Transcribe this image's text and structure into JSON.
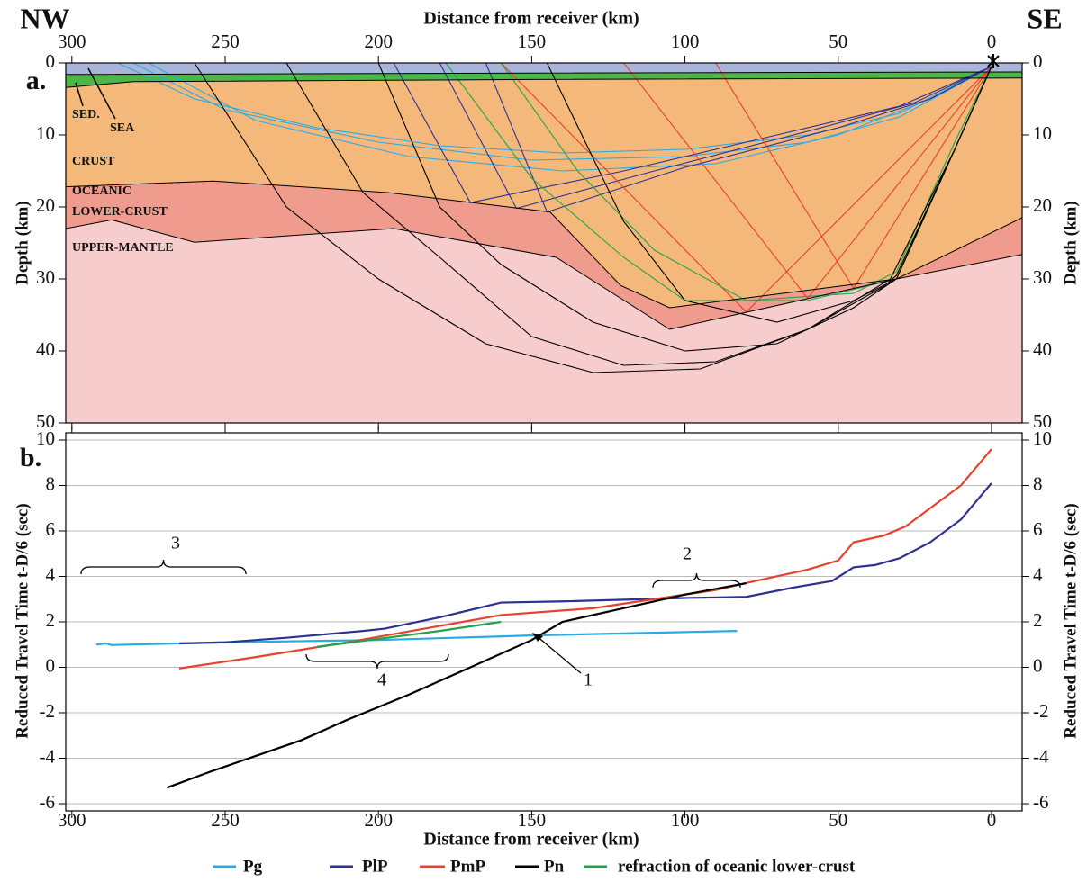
{
  "chart_data": [
    {
      "type": "section",
      "panel_label": "a.",
      "direction_labels": [
        "NW",
        "SE"
      ],
      "xlabel": "Distance from receiver (km)",
      "ylabel": "Depth (km)",
      "xlim": [
        302,
        -10
      ],
      "xticks": [
        300,
        250,
        200,
        150,
        100,
        50,
        0
      ],
      "ylim": [
        0,
        50
      ],
      "yticks": [
        0,
        10,
        20,
        30,
        40,
        50
      ],
      "layer_labels": [
        "SED.",
        "SEA",
        "CRUST",
        "OCEANIC",
        "LOWER-CRUST",
        "UPPER-MANTLE"
      ],
      "layers": [
        {
          "color": "#a9b4da",
          "x": [
            302,
            -10
          ],
          "depth": [
            0,
            0
          ]
        },
        {
          "color": "#4cb748",
          "x": [
            302,
            150,
            -10
          ],
          "depth": [
            1.6,
            1.4,
            1.25
          ]
        },
        {
          "color": "#f4b97a",
          "x": [
            302,
            280,
            150,
            -10
          ],
          "depth": [
            3.4,
            2.6,
            2.3,
            2.1
          ]
        },
        {
          "color": "#ef9b8d",
          "x": [
            302,
            254,
            197,
            144,
            121,
            105,
            31,
            -10
          ],
          "depth": [
            17.2,
            16.4,
            18,
            20.7,
            30.9,
            34,
            30,
            21.5
          ]
        },
        {
          "color": "#f7cccc",
          "x": [
            302,
            287,
            260,
            195,
            142,
            105,
            31,
            -10
          ],
          "depth": [
            23,
            21.8,
            24.9,
            23,
            27,
            37,
            30,
            26.6
          ]
        }
      ],
      "rays": [
        {
          "color": "#29abe2",
          "paths": [
            {
              "x": [
                285,
                260,
                220,
                180,
                140,
                100,
                60,
                30,
                0
              ],
              "depth": [
                0,
                5,
                9,
                11.5,
                12.5,
                12,
                10,
                7,
                0.5
              ]
            },
            {
              "x": [
                280,
                250,
                200,
                150,
                100,
                60,
                30,
                0
              ],
              "depth": [
                0,
                6.5,
                11,
                13.5,
                13,
                11,
                7.5,
                0.5
              ]
            },
            {
              "x": [
                275,
                240,
                190,
                140,
                90,
                50,
                20,
                0
              ],
              "depth": [
                0,
                8,
                13,
                15,
                14,
                10,
                5,
                0.5
              ]
            }
          ]
        },
        {
          "color": "#2e3192",
          "paths": [
            {
              "x": [
                195,
                170,
                120,
                70,
                30,
                0
              ],
              "depth": [
                0,
                19.4,
                15,
                10,
                6,
                0.5
              ]
            },
            {
              "x": [
                180,
                155,
                110,
                60,
                25,
                0
              ],
              "depth": [
                0,
                20.2,
                15,
                9.5,
                5.5,
                0.5
              ]
            },
            {
              "x": [
                165,
                145,
                100,
                50,
                20,
                0
              ],
              "depth": [
                0,
                20.7,
                14.5,
                9,
                5,
                0.5
              ]
            }
          ]
        },
        {
          "color": "#e8412c",
          "paths": [
            {
              "x": [
                160,
                80,
                0
              ],
              "depth": [
                0,
                34.6,
                0.5
              ]
            },
            {
              "x": [
                120,
                60,
                0
              ],
              "depth": [
                0,
                32.7,
                0.5
              ]
            },
            {
              "x": [
                90,
                45,
                0
              ],
              "depth": [
                0,
                31.3,
                0.5
              ]
            }
          ]
        },
        {
          "color": "#22a34a",
          "paths": [
            {
              "x": [
                178,
                150,
                120,
                100,
                60,
                31,
                12,
                0
              ],
              "depth": [
                0,
                16,
                27,
                33,
                33,
                30,
                12,
                0.5
              ]
            },
            {
              "x": [
                160,
                135,
                110,
                80,
                45,
                31,
                12,
                0
              ],
              "depth": [
                0,
                15,
                26,
                33,
                32,
                29,
                11,
                0.5
              ]
            }
          ]
        },
        {
          "color": "#000000",
          "paths": [
            {
              "x": [
                200,
                180,
                160,
                130,
                100,
                70,
                45,
                31,
                12,
                0
              ],
              "depth": [
                0,
                20,
                28,
                36,
                40,
                39,
                34,
                30,
                12,
                0.5
              ]
            },
            {
              "x": [
                230,
                205,
                180,
                150,
                120,
                90,
                60,
                35,
                31,
                12,
                0
              ],
              "depth": [
                0,
                18,
                27,
                38,
                42,
                41.5,
                37,
                31,
                29.5,
                12,
                0.5
              ]
            },
            {
              "x": [
                260,
                230,
                200,
                165,
                130,
                95,
                60,
                33,
                12,
                0
              ],
              "depth": [
                0,
                20,
                30,
                39,
                43,
                42.5,
                37,
                30,
                12,
                0.5
              ]
            },
            {
              "x": [
                145,
                120,
                100,
                70,
                45,
                31,
                12,
                0
              ],
              "depth": [
                0,
                22,
                33,
                36,
                33,
                30,
                12,
                0.5
              ]
            }
          ]
        }
      ]
    },
    {
      "type": "line",
      "panel_label": "b.",
      "xlabel": "Distance from receiver (km)",
      "ylabel": "Reduced Travel Time t-D/6 (sec)",
      "xlim": [
        302,
        -10
      ],
      "xticks": [
        300,
        250,
        200,
        150,
        100,
        50,
        0
      ],
      "ylim": [
        -6,
        10
      ],
      "yticks": [
        -6,
        -4,
        -2,
        0,
        2,
        4,
        6,
        8,
        10
      ],
      "grid": true,
      "annotations": [
        "1",
        "2",
        "3",
        "4"
      ],
      "series": [
        {
          "name": "Pg",
          "color": "#29abe2",
          "x": [
            292,
            289,
            287,
            250,
            200,
            150,
            100,
            83
          ],
          "values": [
            1.0,
            1.05,
            0.98,
            1.1,
            1.2,
            1.4,
            1.55,
            1.6
          ]
        },
        {
          "name": "PlP",
          "color": "#2e3192",
          "x": [
            265,
            250,
            230,
            205,
            198,
            180,
            160,
            140,
            100,
            80,
            65,
            52,
            45,
            38,
            30,
            20,
            10,
            0
          ],
          "values": [
            1.05,
            1.1,
            1.3,
            1.6,
            1.7,
            2.2,
            2.85,
            2.9,
            3.05,
            3.1,
            3.5,
            3.8,
            4.4,
            4.5,
            4.8,
            5.5,
            6.5,
            8.1
          ]
        },
        {
          "name": "PmP",
          "color": "#e8412c",
          "x": [
            265,
            240,
            210,
            185,
            160,
            130,
            110,
            90,
            77,
            60,
            50,
            45,
            35,
            28,
            20,
            10,
            0
          ],
          "values": [
            -0.05,
            0.45,
            1.1,
            1.7,
            2.3,
            2.6,
            3.0,
            3.4,
            3.8,
            4.3,
            4.7,
            5.5,
            5.8,
            6.2,
            7,
            8,
            9.6
          ]
        },
        {
          "name": "Pn",
          "color": "#000000",
          "x": [
            269,
            255,
            240,
            225,
            210,
            190,
            170,
            150,
            140,
            120,
            100,
            80
          ],
          "values": [
            -5.3,
            -4.6,
            -3.9,
            -3.2,
            -2.3,
            -1.2,
            0,
            1.2,
            2.0,
            2.6,
            3.2,
            3.7
          ]
        },
        {
          "name": "refraction of oceanic lower-crust",
          "color": "#22a34a",
          "x": [
            220,
            200,
            180,
            160
          ],
          "values": [
            0.9,
            1.25,
            1.6,
            2.0
          ]
        }
      ]
    }
  ]
}
